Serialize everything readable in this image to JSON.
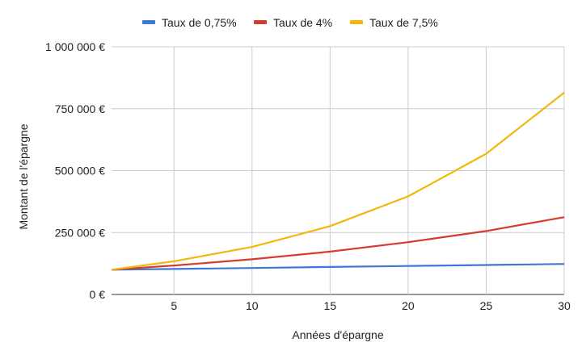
{
  "chart_data": {
    "type": "line",
    "title": "",
    "xlabel": "Années d'épargne",
    "ylabel": "Montant de l'épargne",
    "xlim": [
      1,
      30
    ],
    "ylim": [
      0,
      1000000
    ],
    "x_ticks": [
      5,
      10,
      15,
      20,
      25,
      30
    ],
    "x_tick_labels": [
      "5",
      "10",
      "15",
      "20",
      "25",
      "30"
    ],
    "y_ticks": [
      0,
      250000,
      500000,
      750000,
      1000000
    ],
    "y_tick_labels": [
      "0 €",
      "250 000 €",
      "500 000 €",
      "750 000 €",
      "1 000 000 €"
    ],
    "grid": true,
    "legend_position": "top",
    "x": [
      1,
      5,
      10,
      15,
      20,
      25,
      30
    ],
    "series": [
      {
        "name": "Taux de 0,75%",
        "color": "#3c78d8",
        "values": [
          100000,
          103000,
          107000,
          111000,
          115000,
          119000,
          123000
        ]
      },
      {
        "name": "Taux de 4%",
        "color": "#d63b30",
        "values": [
          100000,
          117000,
          142000,
          173000,
          211000,
          256000,
          312000
        ]
      },
      {
        "name": "Taux de 7,5%",
        "color": "#f1b80b",
        "values": [
          100000,
          134000,
          192000,
          276000,
          396000,
          568000,
          815000
        ]
      }
    ]
  }
}
